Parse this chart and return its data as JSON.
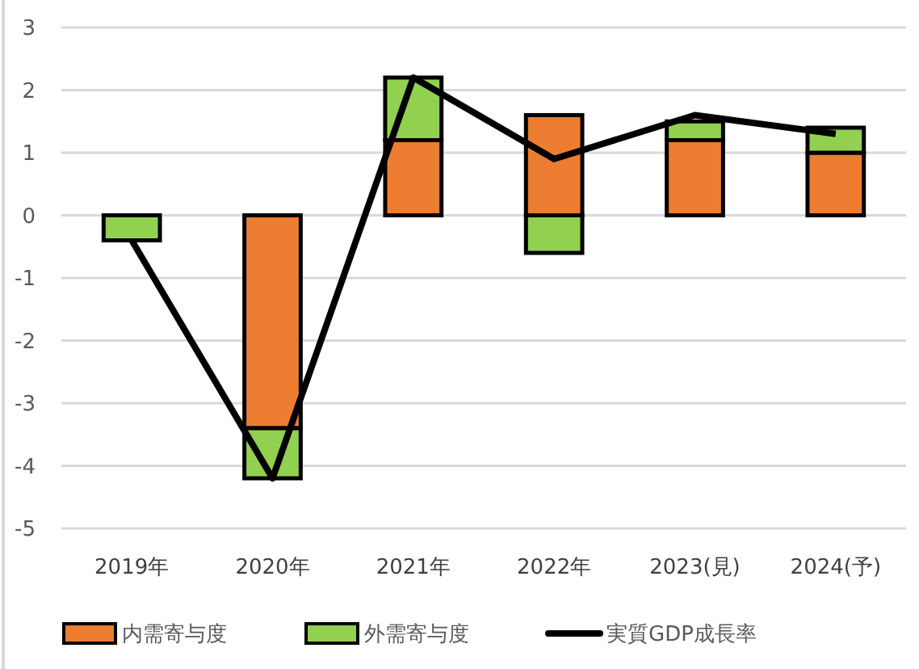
{
  "chart_data": {
    "type": "bar",
    "stacked": true,
    "categories": [
      "2019年",
      "2020年",
      "2021年",
      "2022年",
      "2023(見)",
      "2024(予)"
    ],
    "series": [
      {
        "name": "内需寄与度",
        "color": "#ed7d31",
        "values": [
          0,
          -3.4,
          1.2,
          1.6,
          1.2,
          1.0
        ]
      },
      {
        "name": "外需寄与度",
        "color": "#92d050",
        "values": [
          -0.4,
          -0.8,
          1.0,
          -0.6,
          0.3,
          0.4
        ]
      },
      {
        "name": "実質GDP成長率",
        "type": "line",
        "color": "#000000",
        "values": [
          -0.4,
          -4.2,
          2.2,
          0.9,
          1.6,
          1.3
        ]
      }
    ],
    "ylim": [
      -5,
      3
    ],
    "yticks": [
      -5,
      -4,
      -3,
      -2,
      -1,
      0,
      1,
      2,
      3
    ],
    "grid": "y",
    "legend": "bottom"
  }
}
